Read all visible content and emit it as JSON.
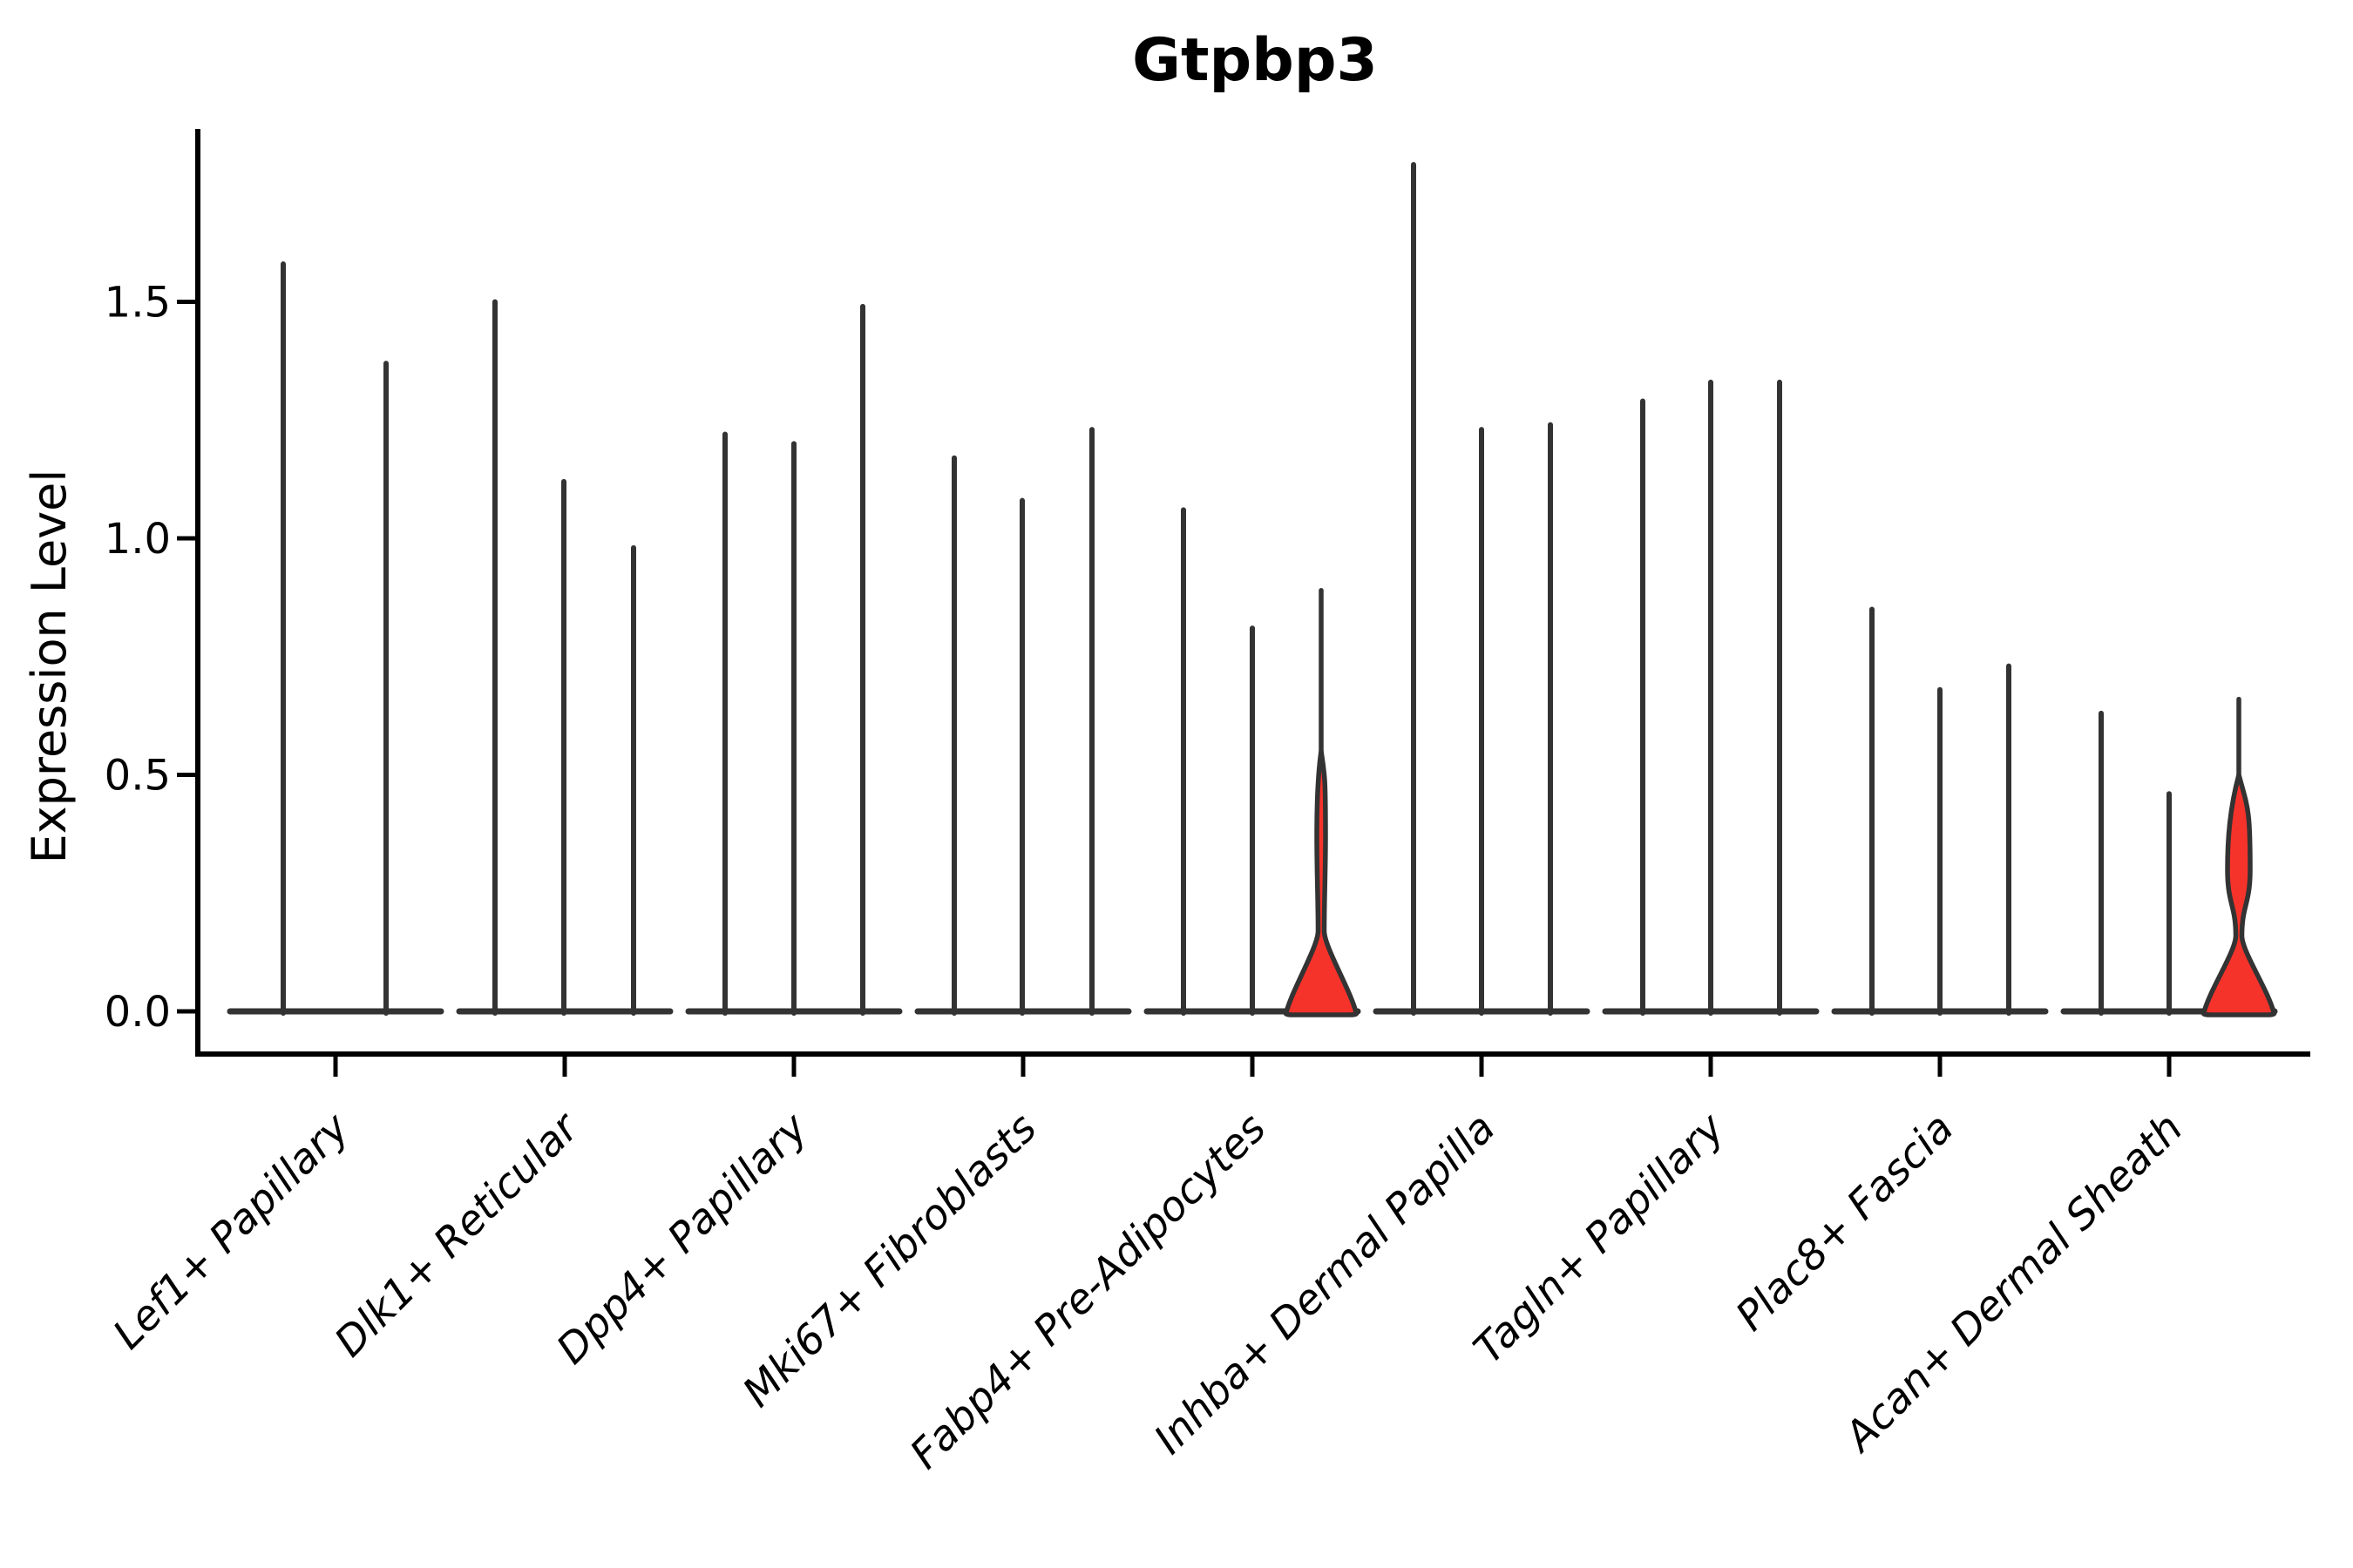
{
  "chart_data": {
    "type": "violin",
    "title": "Gtpbp3",
    "ylabel": "Expression Level",
    "xlabel": "",
    "yticks": [
      0.0,
      0.5,
      1.0,
      1.5
    ],
    "ylim": [
      -0.05,
      1.85
    ],
    "grid": false,
    "legend": null,
    "colors": {
      "ink": "#333333",
      "axis": "#000000",
      "red_fill": "#F6332B",
      "background": "#ffffff"
    },
    "categories": [
      "Lef1+ Papillary",
      "Dlk1+ Reticular",
      "Dpp4+ Papillary",
      "Mki67+ Fibroblasts",
      "Fabp4+ Pre-Adipocytes",
      "Inhba+ Dermal Papilla",
      "Tagln+ Papillary",
      "Plac8+ Fascia",
      "Acan+ Dermal Sheath"
    ],
    "groups": [
      {
        "label": "Lef1+ Papillary",
        "violins": [
          {
            "dx": -60,
            "peak": 1.58
          },
          {
            "dx": 58,
            "peak": 1.37
          }
        ]
      },
      {
        "label": "Dlk1+ Reticular",
        "violins": [
          {
            "dx": -80,
            "peak": 1.5
          },
          {
            "dx": -1,
            "peak": 1.12
          },
          {
            "dx": 79,
            "peak": 0.98
          }
        ]
      },
      {
        "label": "Dpp4+ Papillary",
        "violins": [
          {
            "dx": -79,
            "peak": 1.22
          },
          {
            "dx": 0,
            "peak": 1.2
          },
          {
            "dx": 79,
            "peak": 1.49
          }
        ]
      },
      {
        "label": "Mki67+ Fibroblasts",
        "violins": [
          {
            "dx": -79,
            "peak": 1.17
          },
          {
            "dx": -1,
            "peak": 1.08
          },
          {
            "dx": 79,
            "peak": 1.23
          }
        ]
      },
      {
        "label": "Fabp4+ Pre-Adipocytes",
        "violins": [
          {
            "dx": -79,
            "peak": 1.06
          },
          {
            "dx": 0,
            "peak": 0.81
          },
          {
            "dx": 79,
            "peak": 0.89,
            "red": true,
            "lens": {
              "top": 0.55,
              "widest": 0.37,
              "neck": 0.17,
              "halfwidth": 5
            },
            "bell": {
              "start": 0.14,
              "halfwidth": 40
            }
          }
        ]
      },
      {
        "label": "Inhba+ Dermal Papilla",
        "violins": [
          {
            "dx": -78,
            "peak": 1.79
          },
          {
            "dx": 0,
            "peak": 1.23
          },
          {
            "dx": 79,
            "peak": 1.24
          }
        ]
      },
      {
        "label": "Tagln+ Papillary",
        "violins": [
          {
            "dx": -78,
            "peak": 1.29
          },
          {
            "dx": 0,
            "peak": 1.33
          },
          {
            "dx": 79,
            "peak": 1.33
          }
        ]
      },
      {
        "label": "Plac8+ Fascia",
        "violins": [
          {
            "dx": -78,
            "peak": 0.85
          },
          {
            "dx": 0,
            "peak": 0.68
          },
          {
            "dx": 79,
            "peak": 0.73
          }
        ]
      },
      {
        "label": "Acan+ Dermal Sheath",
        "violins": [
          {
            "dx": -78,
            "peak": 0.63
          },
          {
            "dx": 0,
            "peak": 0.46
          },
          {
            "dx": 80,
            "peak": 0.66,
            "red": true,
            "lens": {
              "top": 0.5,
              "widest": 0.3,
              "neck": 0.16,
              "halfwidth": 13
            },
            "bell": {
              "start": 0.15,
              "halfwidth": 40
            }
          }
        ]
      }
    ]
  }
}
